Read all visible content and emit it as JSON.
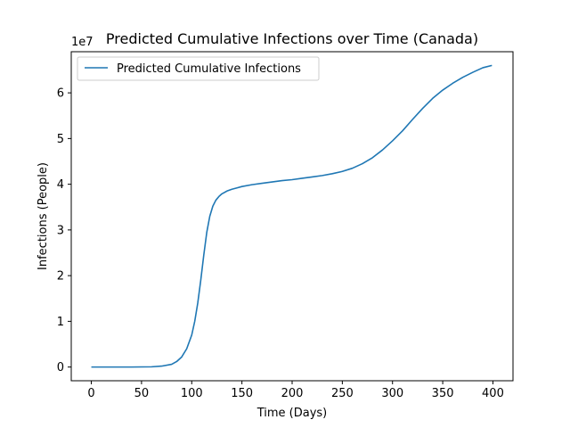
{
  "chart_data": {
    "type": "line",
    "title": "Predicted Cumulative Infections over Time (Canada)",
    "xlabel": "Time (Days)",
    "ylabel": "Infections (People)",
    "y_multiplier_label": "1e7",
    "xlim": [
      -20,
      420
    ],
    "ylim": [
      -0.3,
      6.9
    ],
    "x_ticks": [
      0,
      50,
      100,
      150,
      200,
      250,
      300,
      350,
      400
    ],
    "y_ticks": [
      0,
      1,
      2,
      3,
      4,
      5,
      6
    ],
    "grid": false,
    "legend_position": "upper-left",
    "series": [
      {
        "name": "Predicted Cumulative Infections",
        "color": "#1f77b4",
        "x": [
          0,
          20,
          40,
          60,
          70,
          80,
          85,
          90,
          95,
          100,
          103,
          106,
          109,
          112,
          115,
          118,
          121,
          124,
          127,
          130,
          135,
          140,
          145,
          150,
          160,
          170,
          180,
          190,
          200,
          210,
          220,
          230,
          240,
          250,
          260,
          270,
          280,
          290,
          300,
          310,
          320,
          330,
          340,
          350,
          360,
          370,
          380,
          390,
          399
        ],
        "y": [
          0,
          0,
          0,
          0.005,
          0.02,
          0.06,
          0.12,
          0.22,
          0.4,
          0.7,
          1.0,
          1.4,
          1.9,
          2.45,
          2.95,
          3.3,
          3.52,
          3.65,
          3.73,
          3.79,
          3.85,
          3.89,
          3.92,
          3.95,
          3.99,
          4.02,
          4.05,
          4.08,
          4.1,
          4.13,
          4.16,
          4.19,
          4.23,
          4.28,
          4.35,
          4.45,
          4.58,
          4.75,
          4.95,
          5.17,
          5.42,
          5.66,
          5.88,
          6.06,
          6.21,
          6.34,
          6.45,
          6.55,
          6.6
        ]
      }
    ]
  }
}
